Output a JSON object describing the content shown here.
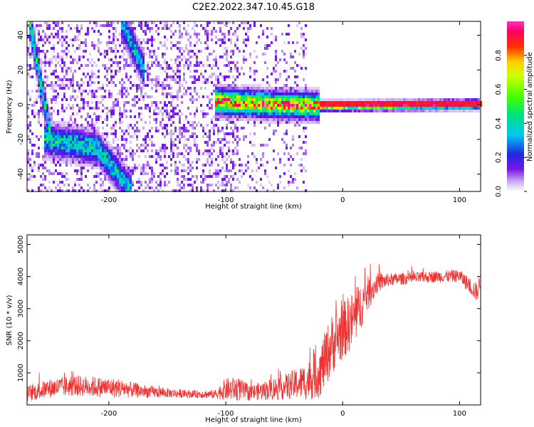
{
  "title": "C2E2.2022.347.10.45.G18",
  "chart_data": [
    {
      "type": "heatmap",
      "title": "C2E2.2022.347.10.45.G18",
      "xlabel": "Height of straight line (km)",
      "ylabel": "Frequency (Hz)",
      "xlim": [
        -270,
        118
      ],
      "ylim": [
        -50,
        48
      ],
      "xticks": [
        -200,
        -100,
        0,
        100
      ],
      "yticks": [
        -40,
        -20,
        0,
        20,
        40
      ],
      "colorbar": {
        "label": "Normalized spectral amplitude",
        "range": [
          0,
          1
        ],
        "ticks": [
          "0.0",
          "0.2",
          "0.4",
          "0.6",
          "0.8"
        ],
        "colormap": "gist_ncar-like: white, purple, blue, cyan, green, yellow, red, magenta"
      },
      "features": [
        {
          "x": [
            -268,
            -255,
            -248
          ],
          "y": [
            48,
            0,
            -25
          ],
          "level": 0.5
        },
        {
          "x": [
            -255,
            -210,
            -180
          ],
          "y": [
            -20,
            -25,
            -50
          ],
          "level": 0.45
        },
        {
          "x": [
            -190,
            -170
          ],
          "y": [
            48,
            20
          ],
          "level": 0.4
        },
        {
          "x": [
            -110,
            -60,
            -20,
            118
          ],
          "y": [
            2,
            0,
            -1,
            0
          ],
          "level": 0.9
        }
      ]
    },
    {
      "type": "line",
      "xlabel": "Height of straight line (km)",
      "ylabel": "SNR (10 * v/v)",
      "xlim": [
        -270,
        118
      ],
      "ylim": [
        0,
        5300
      ],
      "xticks": [
        -200,
        -100,
        0,
        100
      ],
      "yticks": [
        1000,
        2000,
        3000,
        4000,
        5000
      ],
      "color": "#ee3333",
      "series": [
        {
          "x": [
            -270,
            -250,
            -230,
            -210,
            -190,
            -170,
            -150,
            -130,
            -110,
            -100,
            -90,
            -80,
            -70,
            -60,
            -50,
            -40,
            -30,
            -20,
            -10,
            0,
            10,
            20,
            30,
            40,
            60,
            80,
            100,
            115,
            118
          ],
          "y": [
            350,
            520,
            600,
            560,
            520,
            420,
            370,
            340,
            330,
            480,
            500,
            380,
            430,
            500,
            560,
            650,
            750,
            1000,
            1850,
            2300,
            2700,
            3400,
            3800,
            3900,
            3950,
            4000,
            4020,
            3500,
            3900
          ],
          "noise": [
            250,
            300,
            330,
            320,
            300,
            200,
            150,
            120,
            130,
            350,
            380,
            250,
            280,
            350,
            400,
            480,
            600,
            800,
            950,
            900,
            900,
            600,
            300,
            200,
            180,
            180,
            200,
            300,
            300
          ]
        }
      ]
    }
  ]
}
